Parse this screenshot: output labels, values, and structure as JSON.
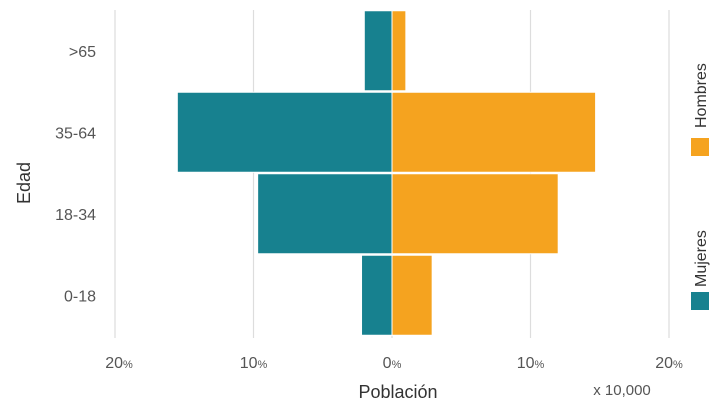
{
  "chart_data": {
    "type": "bar",
    "orientation": "horizontal-population-pyramid",
    "categories": [
      ">65",
      "35-64",
      "18-34",
      "0-18"
    ],
    "series": [
      {
        "name": "Mujeres",
        "color": "#17818f",
        "values": [
          2.0,
          15.5,
          9.7,
          2.2
        ]
      },
      {
        "name": "Hombres",
        "color": "#f5a31f",
        "values": [
          1.0,
          14.7,
          12.0,
          2.9
        ]
      }
    ],
    "xticks": [
      {
        "num": "20",
        "unit": "%"
      },
      {
        "num": "10",
        "unit": "%"
      },
      {
        "num": "0",
        "unit": "%"
      },
      {
        "num": "10",
        "unit": "%"
      },
      {
        "num": "20",
        "unit": "%"
      }
    ],
    "xlim": [
      -20,
      20
    ],
    "xlabel": "Población",
    "ylabel": "Edad",
    "scale_note": "x 10,000",
    "grid": "vertical",
    "legend_position": "right, vertical text"
  }
}
